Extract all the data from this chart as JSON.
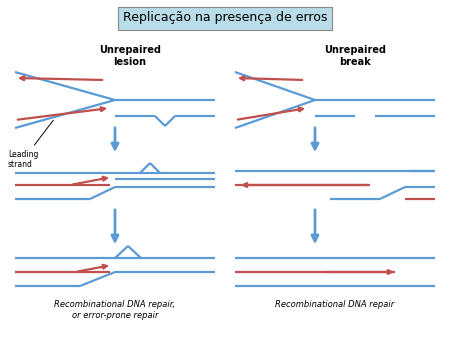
{
  "title": "Replicação na presença de erros",
  "title_bg": "#b8dce8",
  "blue": "#5B9BD5",
  "red": "#C0504D",
  "lw": 1.6,
  "left_label": "Unrepaired\nlesion",
  "right_label": "Unrepaired\nbreak",
  "bottom_left": "Recombinational DNA repair,\nor error-prone repair",
  "bottom_right": "Recombinational DNA repair",
  "leading_strand": "Leading\nstrand"
}
